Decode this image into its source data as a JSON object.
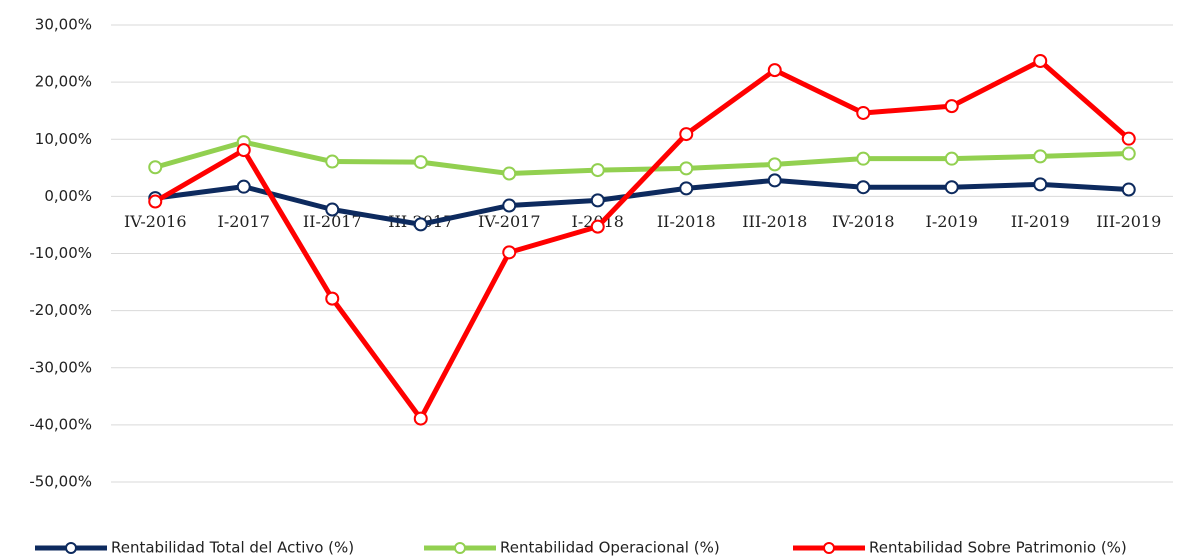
{
  "chart_data": {
    "type": "line",
    "categories": [
      "IV-2016",
      "I-2017",
      "II-2017",
      "III-2017",
      "IV-2017",
      "I-2018",
      "II-2018",
      "III-2018",
      "IV-2018",
      "I-2019",
      "II-2019",
      "III-2019"
    ],
    "series": [
      {
        "name": "Rentabilidad Total del Activo (%)",
        "color": "#0d2a5e",
        "values": [
          -0.3,
          1.7,
          -2.3,
          -4.9,
          -1.6,
          -0.7,
          1.4,
          2.8,
          1.6,
          1.6,
          2.1,
          1.2
        ]
      },
      {
        "name": "Rentabilidad Operacional (%)",
        "color": "#92d050",
        "values": [
          5.1,
          9.5,
          6.1,
          6.0,
          4.0,
          4.6,
          4.9,
          5.6,
          6.6,
          6.6,
          7.0,
          7.5
        ]
      },
      {
        "name": "Rentabilidad Sobre Patrimonio (%)",
        "color": "#ff0000",
        "values": [
          -0.9,
          8.1,
          -17.9,
          -38.9,
          -9.8,
          -5.3,
          10.9,
          22.1,
          14.6,
          15.8,
          23.7,
          10.1
        ]
      }
    ],
    "ylim": [
      -50,
      30
    ],
    "yticks": [
      {
        "value": -50,
        "label": "-50,00%"
      },
      {
        "value": -40,
        "label": "-40,00%"
      },
      {
        "value": -30,
        "label": "-30,00%"
      },
      {
        "value": -20,
        "label": "-20,00%"
      },
      {
        "value": -10,
        "label": "-10,00%"
      },
      {
        "value": 0,
        "label": "0,00%"
      },
      {
        "value": 10,
        "label": "10,00%"
      },
      {
        "value": 20,
        "label": "20,00%"
      },
      {
        "value": 30,
        "label": "30,00%"
      }
    ],
    "grid": true,
    "legend": "bottom"
  }
}
